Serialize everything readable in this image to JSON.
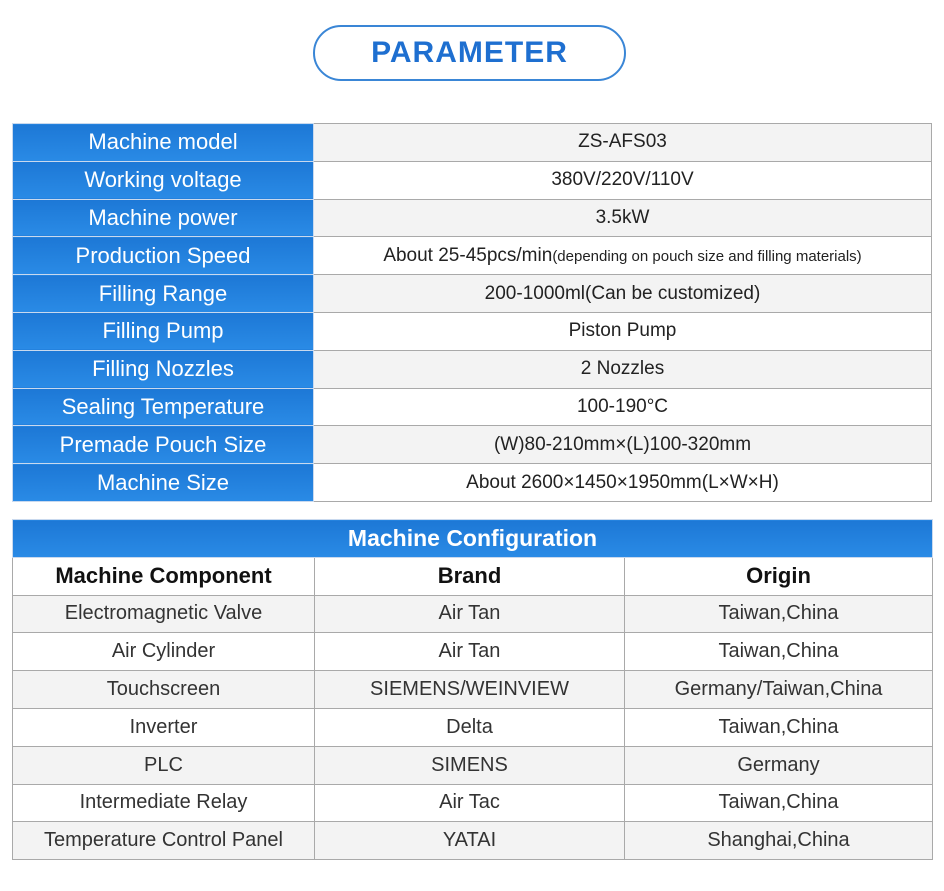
{
  "title": "PARAMETER",
  "parameters": [
    {
      "label": "Machine model",
      "value": "ZS-AFS03",
      "note": ""
    },
    {
      "label": "Working voltage",
      "value": "380V/220V/110V",
      "note": ""
    },
    {
      "label": "Machine power",
      "value": "3.5kW",
      "note": ""
    },
    {
      "label": "Production Speed",
      "value": "About 25-45pcs/min",
      "note": "(depending on pouch size and filling materials)"
    },
    {
      "label": "Filling Range",
      "value": "200-1000ml(Can be customized)",
      "note": ""
    },
    {
      "label": "Filling Pump",
      "value": "Piston Pump",
      "note": ""
    },
    {
      "label": "Filling Nozzles",
      "value": "2 Nozzles",
      "note": ""
    },
    {
      "label": "Sealing Temperature",
      "value": "100-190°C",
      "note": ""
    },
    {
      "label": "Premade Pouch Size",
      "value": "(W)80-210mm×(L)100-320mm",
      "note": ""
    },
    {
      "label": "Machine Size",
      "value": "About 2600×1450×1950mm(L×W×H)",
      "note": ""
    }
  ],
  "configuration": {
    "title": "Machine Configuration",
    "headers": [
      "Machine Component",
      "Brand",
      "Origin"
    ],
    "rows": [
      [
        "Electromagnetic Valve",
        "Air Tan",
        "Taiwan,China"
      ],
      [
        "Air Cylinder",
        "Air Tan",
        "Taiwan,China"
      ],
      [
        "Touchscreen",
        "SIEMENS/WEINVIEW",
        "Germany/Taiwan,China"
      ],
      [
        "Inverter",
        "Delta",
        "Taiwan,China"
      ],
      [
        "PLC",
        "SIMENS",
        "Germany"
      ],
      [
        "Intermediate Relay",
        "Air Tac",
        "Taiwan,China"
      ],
      [
        "Temperature Control Panel",
        "YATAI",
        "Shanghai,China"
      ]
    ]
  },
  "colors": {
    "accent": "#1e78d6",
    "border": "#a9a9a9"
  }
}
